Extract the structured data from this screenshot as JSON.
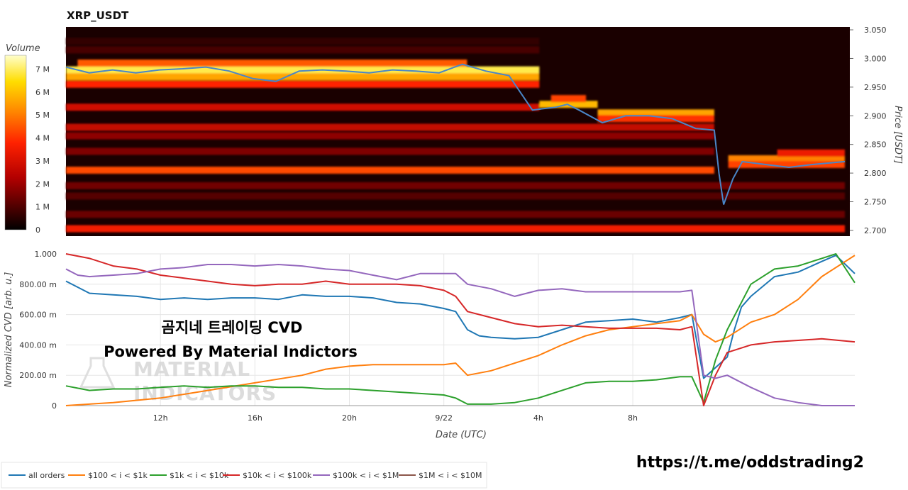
{
  "chart_data": [
    {
      "type": "heatmap",
      "title": "XRP_USDT",
      "ylabel": "Price [USDT]",
      "ylim": [
        2.69,
        3.055
      ],
      "yticks": [
        "3.050",
        "3.000",
        "2.950",
        "2.900",
        "2.850",
        "2.800",
        "2.750",
        "2.700"
      ],
      "ytick_values": [
        3.05,
        3.0,
        2.95,
        2.9,
        2.85,
        2.8,
        2.75,
        2.7
      ],
      "colorbar": {
        "title": "Volume",
        "ticks": [
          "7 M",
          "6 M",
          "5 M",
          "4 M",
          "3 M",
          "2 M",
          "1 M",
          "0"
        ],
        "tick_values": [
          7,
          6,
          5,
          4,
          3,
          2,
          1,
          0
        ],
        "range": [
          0,
          7.6
        ],
        "colors": [
          "#000000",
          "#5a0000",
          "#b30000",
          "#ff2200",
          "#ff8800",
          "#ffdd00",
          "#ffffcc"
        ]
      },
      "price_series": {
        "name": "Price",
        "color": "#4a86c8",
        "x": [
          0,
          1,
          2,
          3,
          4,
          5,
          6,
          7,
          8,
          9,
          10,
          11,
          12,
          13,
          14,
          15,
          16,
          17,
          18,
          19,
          20,
          21,
          21.5,
          22,
          23,
          24,
          25,
          26,
          27,
          27.8,
          28,
          28.2,
          28.6,
          29,
          30,
          31,
          32,
          33.4
        ],
        "y": [
          2.985,
          2.975,
          2.98,
          2.975,
          2.98,
          2.982,
          2.985,
          2.978,
          2.965,
          2.96,
          2.978,
          2.98,
          2.978,
          2.975,
          2.98,
          2.978,
          2.975,
          2.99,
          2.978,
          2.97,
          2.91,
          2.915,
          2.92,
          2.91,
          2.888,
          2.9,
          2.9,
          2.895,
          2.878,
          2.875,
          2.8,
          2.745,
          2.79,
          2.82,
          2.815,
          2.81,
          2.815,
          2.82
        ]
      },
      "price_bands": [
        {
          "y": 2.98,
          "x0": 0,
          "x1": 20.3,
          "level": 6.8
        },
        {
          "y": 2.968,
          "x0": 0,
          "x1": 20.3,
          "level": 5.5
        },
        {
          "y": 2.992,
          "x0": 0.5,
          "x1": 17.2,
          "level": 4.5
        },
        {
          "y": 2.955,
          "x0": 0,
          "x1": 20.3,
          "level": 3.8
        },
        {
          "y": 2.92,
          "x0": 20.3,
          "x1": 22.8,
          "level": 5.8
        },
        {
          "y": 2.93,
          "x0": 20.8,
          "x1": 22.3,
          "level": 4.2
        },
        {
          "y": 2.905,
          "x0": 22.8,
          "x1": 27.8,
          "level": 5.5
        },
        {
          "y": 2.895,
          "x0": 22.8,
          "x1": 27.8,
          "level": 4.0
        },
        {
          "y": 2.915,
          "x0": 0,
          "x1": 20.3,
          "level": 3.0
        },
        {
          "y": 2.88,
          "x0": 0,
          "x1": 27.8,
          "level": 2.8
        },
        {
          "y": 2.865,
          "x0": 0,
          "x1": 27.8,
          "level": 2.0
        },
        {
          "y": 2.838,
          "x0": 0,
          "x1": 27.8,
          "level": 1.8
        },
        {
          "y": 2.805,
          "x0": 0,
          "x1": 27.8,
          "level": 4.3
        },
        {
          "y": 2.778,
          "x0": 0,
          "x1": 33.4,
          "level": 1.6
        },
        {
          "y": 2.76,
          "x0": 0,
          "x1": 33.4,
          "level": 1.2
        },
        {
          "y": 2.728,
          "x0": 0,
          "x1": 33.4,
          "level": 1.5
        },
        {
          "y": 2.703,
          "x0": 0,
          "x1": 33.4,
          "level": 3.6
        },
        {
          "y": 2.825,
          "x0": 28.4,
          "x1": 33.4,
          "level": 5.0
        },
        {
          "y": 2.815,
          "x0": 28.4,
          "x1": 33.4,
          "level": 4.2
        },
        {
          "y": 2.835,
          "x0": 30.5,
          "x1": 33.4,
          "level": 3.5
        },
        {
          "y": 3.03,
          "x0": 0,
          "x1": 20.3,
          "level": 0.7
        },
        {
          "y": 3.015,
          "x0": 0,
          "x1": 20.3,
          "level": 1.0
        }
      ]
    },
    {
      "type": "line",
      "xlabel": "Date (UTC)",
      "ylabel": "Normalized CVD [arb. u.]",
      "ylim": [
        0,
        1.0
      ],
      "yticks": [
        "1.000",
        "800.00 m",
        "600.00 m",
        "400.00 m",
        "200.00 m",
        "0"
      ],
      "ytick_values": [
        1.0,
        0.8,
        0.6,
        0.4,
        0.2,
        0
      ],
      "xlim": [
        0,
        33.4
      ],
      "xticks": [
        "12h",
        "16h",
        "20h",
        "9/22",
        "4h",
        "8h"
      ],
      "xtick_values": [
        4,
        8,
        12,
        16,
        20,
        24
      ],
      "series": [
        {
          "name": "all orders",
          "color": "#1f77b4",
          "x": [
            0,
            1,
            2,
            3,
            4,
            5,
            6,
            7,
            8,
            9,
            10,
            11,
            12,
            13,
            14,
            15,
            16,
            16.5,
            17,
            17.5,
            18,
            19,
            20,
            21,
            22,
            23,
            24,
            25,
            26,
            26.5,
            27,
            28,
            28.3,
            28.6,
            29,
            30,
            31,
            32,
            32.6,
            33.4
          ],
          "y": [
            0.82,
            0.74,
            0.73,
            0.72,
            0.7,
            0.71,
            0.7,
            0.71,
            0.71,
            0.7,
            0.73,
            0.72,
            0.72,
            0.71,
            0.68,
            0.67,
            0.64,
            0.62,
            0.5,
            0.46,
            0.45,
            0.44,
            0.45,
            0.5,
            0.55,
            0.56,
            0.57,
            0.55,
            0.58,
            0.6,
            0.18,
            0.32,
            0.5,
            0.65,
            0.72,
            0.85,
            0.88,
            0.95,
            0.99,
            0.87
          ]
        },
        {
          "name": "$100 < i < $1k",
          "color": "#ff7f0e",
          "x": [
            0,
            2,
            4,
            6,
            8,
            10,
            11,
            12,
            13,
            14,
            15,
            16,
            16.5,
            17,
            18,
            19,
            20,
            21,
            22,
            23,
            24,
            25,
            26,
            26.5,
            27,
            27.5,
            28,
            29,
            30,
            31,
            32,
            33.4
          ],
          "y": [
            0.0,
            0.02,
            0.05,
            0.1,
            0.15,
            0.2,
            0.24,
            0.26,
            0.27,
            0.27,
            0.27,
            0.27,
            0.28,
            0.2,
            0.23,
            0.28,
            0.33,
            0.4,
            0.46,
            0.5,
            0.52,
            0.54,
            0.56,
            0.6,
            0.47,
            0.42,
            0.45,
            0.55,
            0.6,
            0.7,
            0.85,
            0.99
          ]
        },
        {
          "name": "$1k < i < $10k",
          "color": "#2ca02c",
          "x": [
            0,
            1,
            2,
            3,
            4,
            5,
            6,
            7,
            8,
            9,
            10,
            11,
            12,
            13,
            14,
            15,
            16,
            16.5,
            17,
            18,
            19,
            20,
            21,
            22,
            23,
            24,
            25,
            26,
            26.5,
            27,
            27.5,
            28,
            29,
            30,
            31,
            32,
            32.6,
            33.4
          ],
          "y": [
            0.13,
            0.1,
            0.11,
            0.11,
            0.12,
            0.13,
            0.12,
            0.13,
            0.13,
            0.12,
            0.12,
            0.11,
            0.11,
            0.1,
            0.09,
            0.08,
            0.07,
            0.05,
            0.01,
            0.01,
            0.02,
            0.05,
            0.1,
            0.15,
            0.16,
            0.16,
            0.17,
            0.19,
            0.19,
            0.02,
            0.3,
            0.5,
            0.8,
            0.9,
            0.92,
            0.97,
            1.0,
            0.81
          ]
        },
        {
          "name": "$10k < i < $100k",
          "color": "#d62728",
          "x": [
            0,
            1,
            2,
            3,
            4,
            5,
            6,
            7,
            8,
            9,
            10,
            11,
            12,
            13,
            14,
            15,
            16,
            16.5,
            17,
            18,
            19,
            20,
            21,
            22,
            23,
            24,
            25,
            26,
            26.5,
            27,
            27.5,
            28,
            29,
            30,
            31,
            32,
            33.4
          ],
          "y": [
            1.0,
            0.97,
            0.92,
            0.9,
            0.86,
            0.84,
            0.82,
            0.8,
            0.79,
            0.8,
            0.8,
            0.82,
            0.8,
            0.8,
            0.8,
            0.79,
            0.76,
            0.72,
            0.62,
            0.58,
            0.54,
            0.52,
            0.53,
            0.52,
            0.51,
            0.51,
            0.51,
            0.5,
            0.52,
            0.0,
            0.2,
            0.35,
            0.4,
            0.42,
            0.43,
            0.44,
            0.42
          ]
        },
        {
          "name": "$100k < i < $1M",
          "color": "#9467bd",
          "x": [
            0,
            0.5,
            1,
            2,
            3,
            4,
            5,
            6,
            7,
            8,
            9,
            10,
            11,
            12,
            13,
            14,
            15,
            16,
            16.5,
            17,
            18,
            19,
            20,
            21,
            22,
            23,
            24,
            25,
            26,
            26.5,
            27,
            27.5,
            28,
            29,
            30,
            31,
            32,
            33.4
          ],
          "y": [
            0.9,
            0.86,
            0.85,
            0.86,
            0.87,
            0.9,
            0.91,
            0.93,
            0.93,
            0.92,
            0.93,
            0.92,
            0.9,
            0.89,
            0.86,
            0.83,
            0.87,
            0.87,
            0.87,
            0.8,
            0.77,
            0.72,
            0.76,
            0.77,
            0.75,
            0.75,
            0.75,
            0.75,
            0.75,
            0.76,
            0.2,
            0.18,
            0.2,
            0.12,
            0.05,
            0.02,
            0.0,
            0.0
          ]
        },
        {
          "name": "$1M < i < $10M",
          "color": "#8c564b",
          "x": [],
          "y": []
        }
      ]
    }
  ],
  "overlay": {
    "korean_title": "곰지네 트레이딩 CVD",
    "powered_by": "Powered By Material Indictors",
    "watermark_line1": "MATERIAL",
    "watermark_line2": "INDICATORS",
    "telegram_link": "https://t.me/oddstrading2"
  }
}
